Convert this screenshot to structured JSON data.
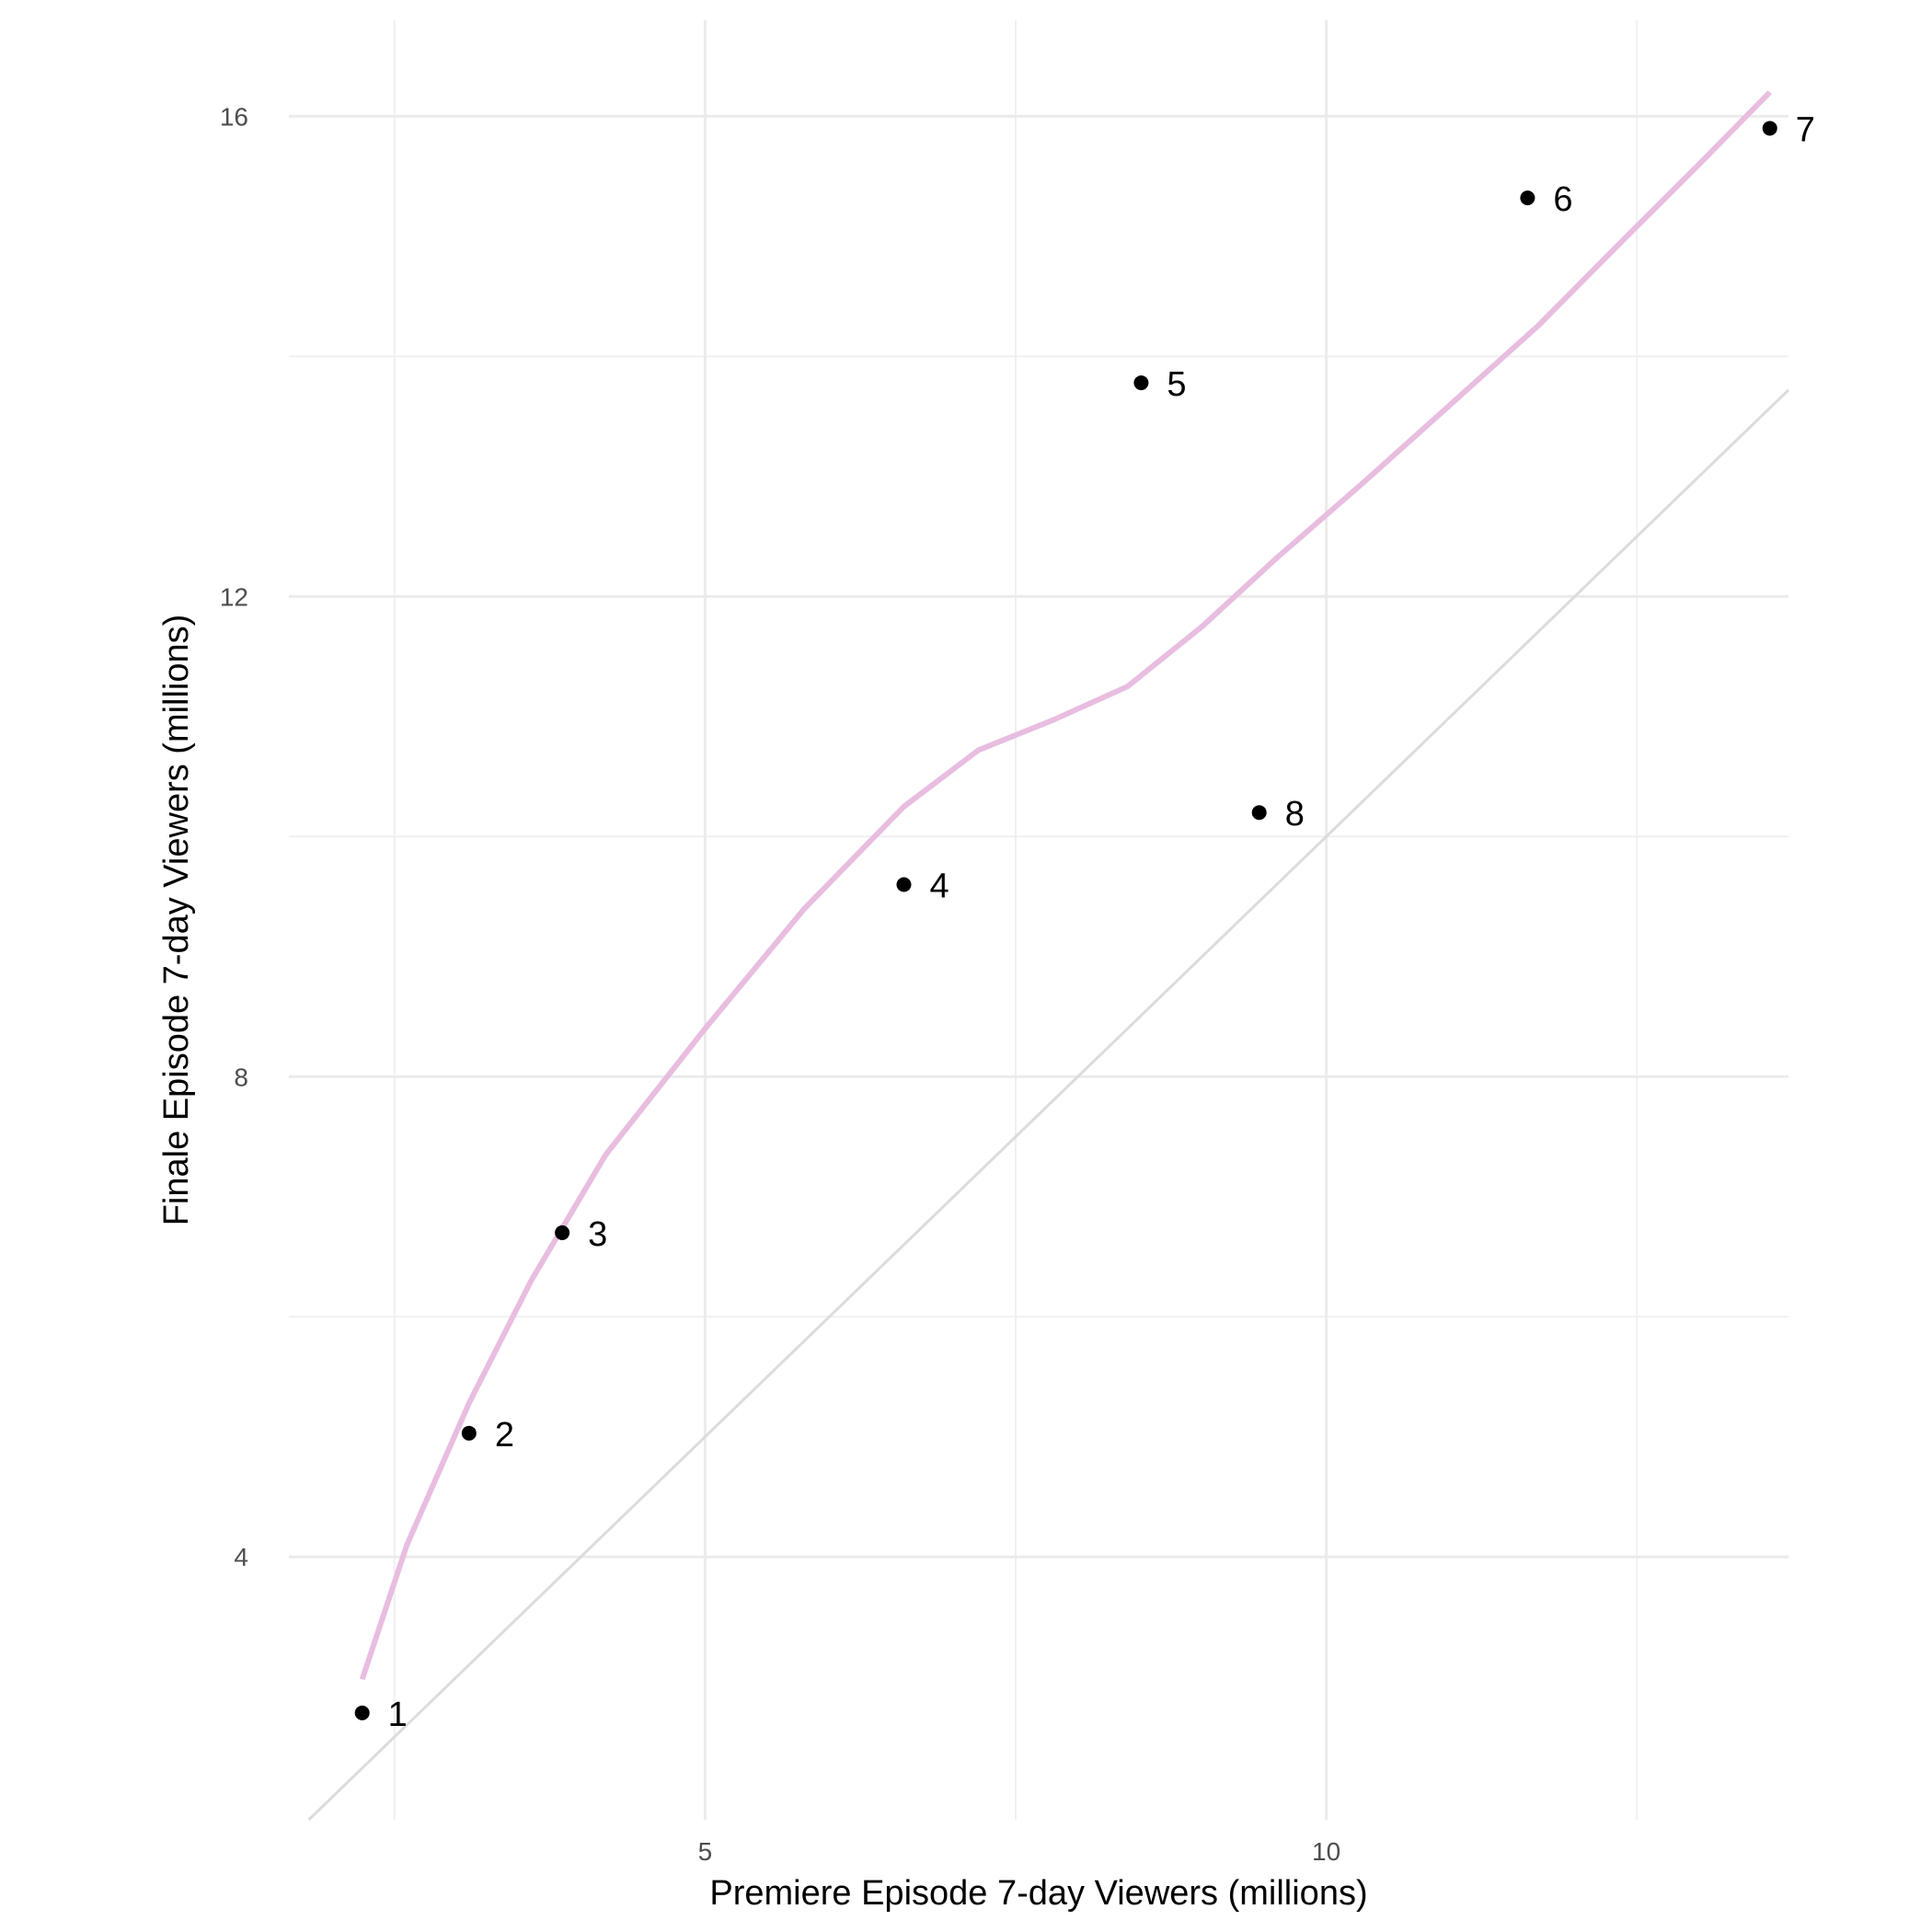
{
  "chart_data": {
    "type": "scatter",
    "title": "",
    "xlabel": "Premiere Episode 7-day Viewers (millions)",
    "ylabel": "Finale Episode 7-day Viewers (millions)",
    "xlim": [
      1.65,
      13.72
    ],
    "ylim": [
      1.81,
      16.8
    ],
    "x_ticks": [
      5,
      10
    ],
    "y_ticks": [
      4,
      8,
      12,
      16
    ],
    "x_minor_gridlines": [
      2.5,
      7.5,
      12.5
    ],
    "y_minor_gridlines": [
      6,
      10,
      14
    ],
    "grid": true,
    "series": [
      {
        "values": [
          {
            "x": 2.24,
            "y": 2.7,
            "label": "1"
          },
          {
            "x": 3.1,
            "y": 5.03,
            "label": "2"
          },
          {
            "x": 3.85,
            "y": 6.7,
            "label": "3"
          },
          {
            "x": 6.6,
            "y": 9.6,
            "label": "4"
          },
          {
            "x": 8.51,
            "y": 13.78,
            "label": "5"
          },
          {
            "x": 11.62,
            "y": 15.32,
            "label": "6"
          },
          {
            "x": 13.57,
            "y": 15.9,
            "label": "7"
          },
          {
            "x": 9.46,
            "y": 10.2,
            "label": "8"
          }
        ],
        "color": "#000000"
      }
    ],
    "smooth_line": {
      "color": "#e8bde0",
      "values": [
        {
          "x": 2.24,
          "y": 2.98
        },
        {
          "x": 2.6,
          "y": 4.1
        },
        {
          "x": 3.1,
          "y": 5.28
        },
        {
          "x": 3.6,
          "y": 6.3
        },
        {
          "x": 4.2,
          "y": 7.35
        },
        {
          "x": 5.0,
          "y": 8.4
        },
        {
          "x": 5.8,
          "y": 9.4
        },
        {
          "x": 6.6,
          "y": 10.25
        },
        {
          "x": 7.2,
          "y": 10.72
        },
        {
          "x": 7.8,
          "y": 10.97
        },
        {
          "x": 8.4,
          "y": 11.25
        },
        {
          "x": 9.0,
          "y": 11.75
        },
        {
          "x": 9.6,
          "y": 12.32
        },
        {
          "x": 10.3,
          "y": 12.95
        },
        {
          "x": 11.0,
          "y": 13.6
        },
        {
          "x": 11.7,
          "y": 14.25
        },
        {
          "x": 12.4,
          "y": 14.98
        },
        {
          "x": 13.0,
          "y": 15.6
        },
        {
          "x": 13.57,
          "y": 16.2
        }
      ]
    },
    "reference_line": {
      "description": "y = x",
      "color": "#dcdcdc",
      "values": [
        {
          "x": 1.81,
          "y": 1.81
        },
        {
          "x": 13.72,
          "y": 13.72
        }
      ]
    }
  }
}
